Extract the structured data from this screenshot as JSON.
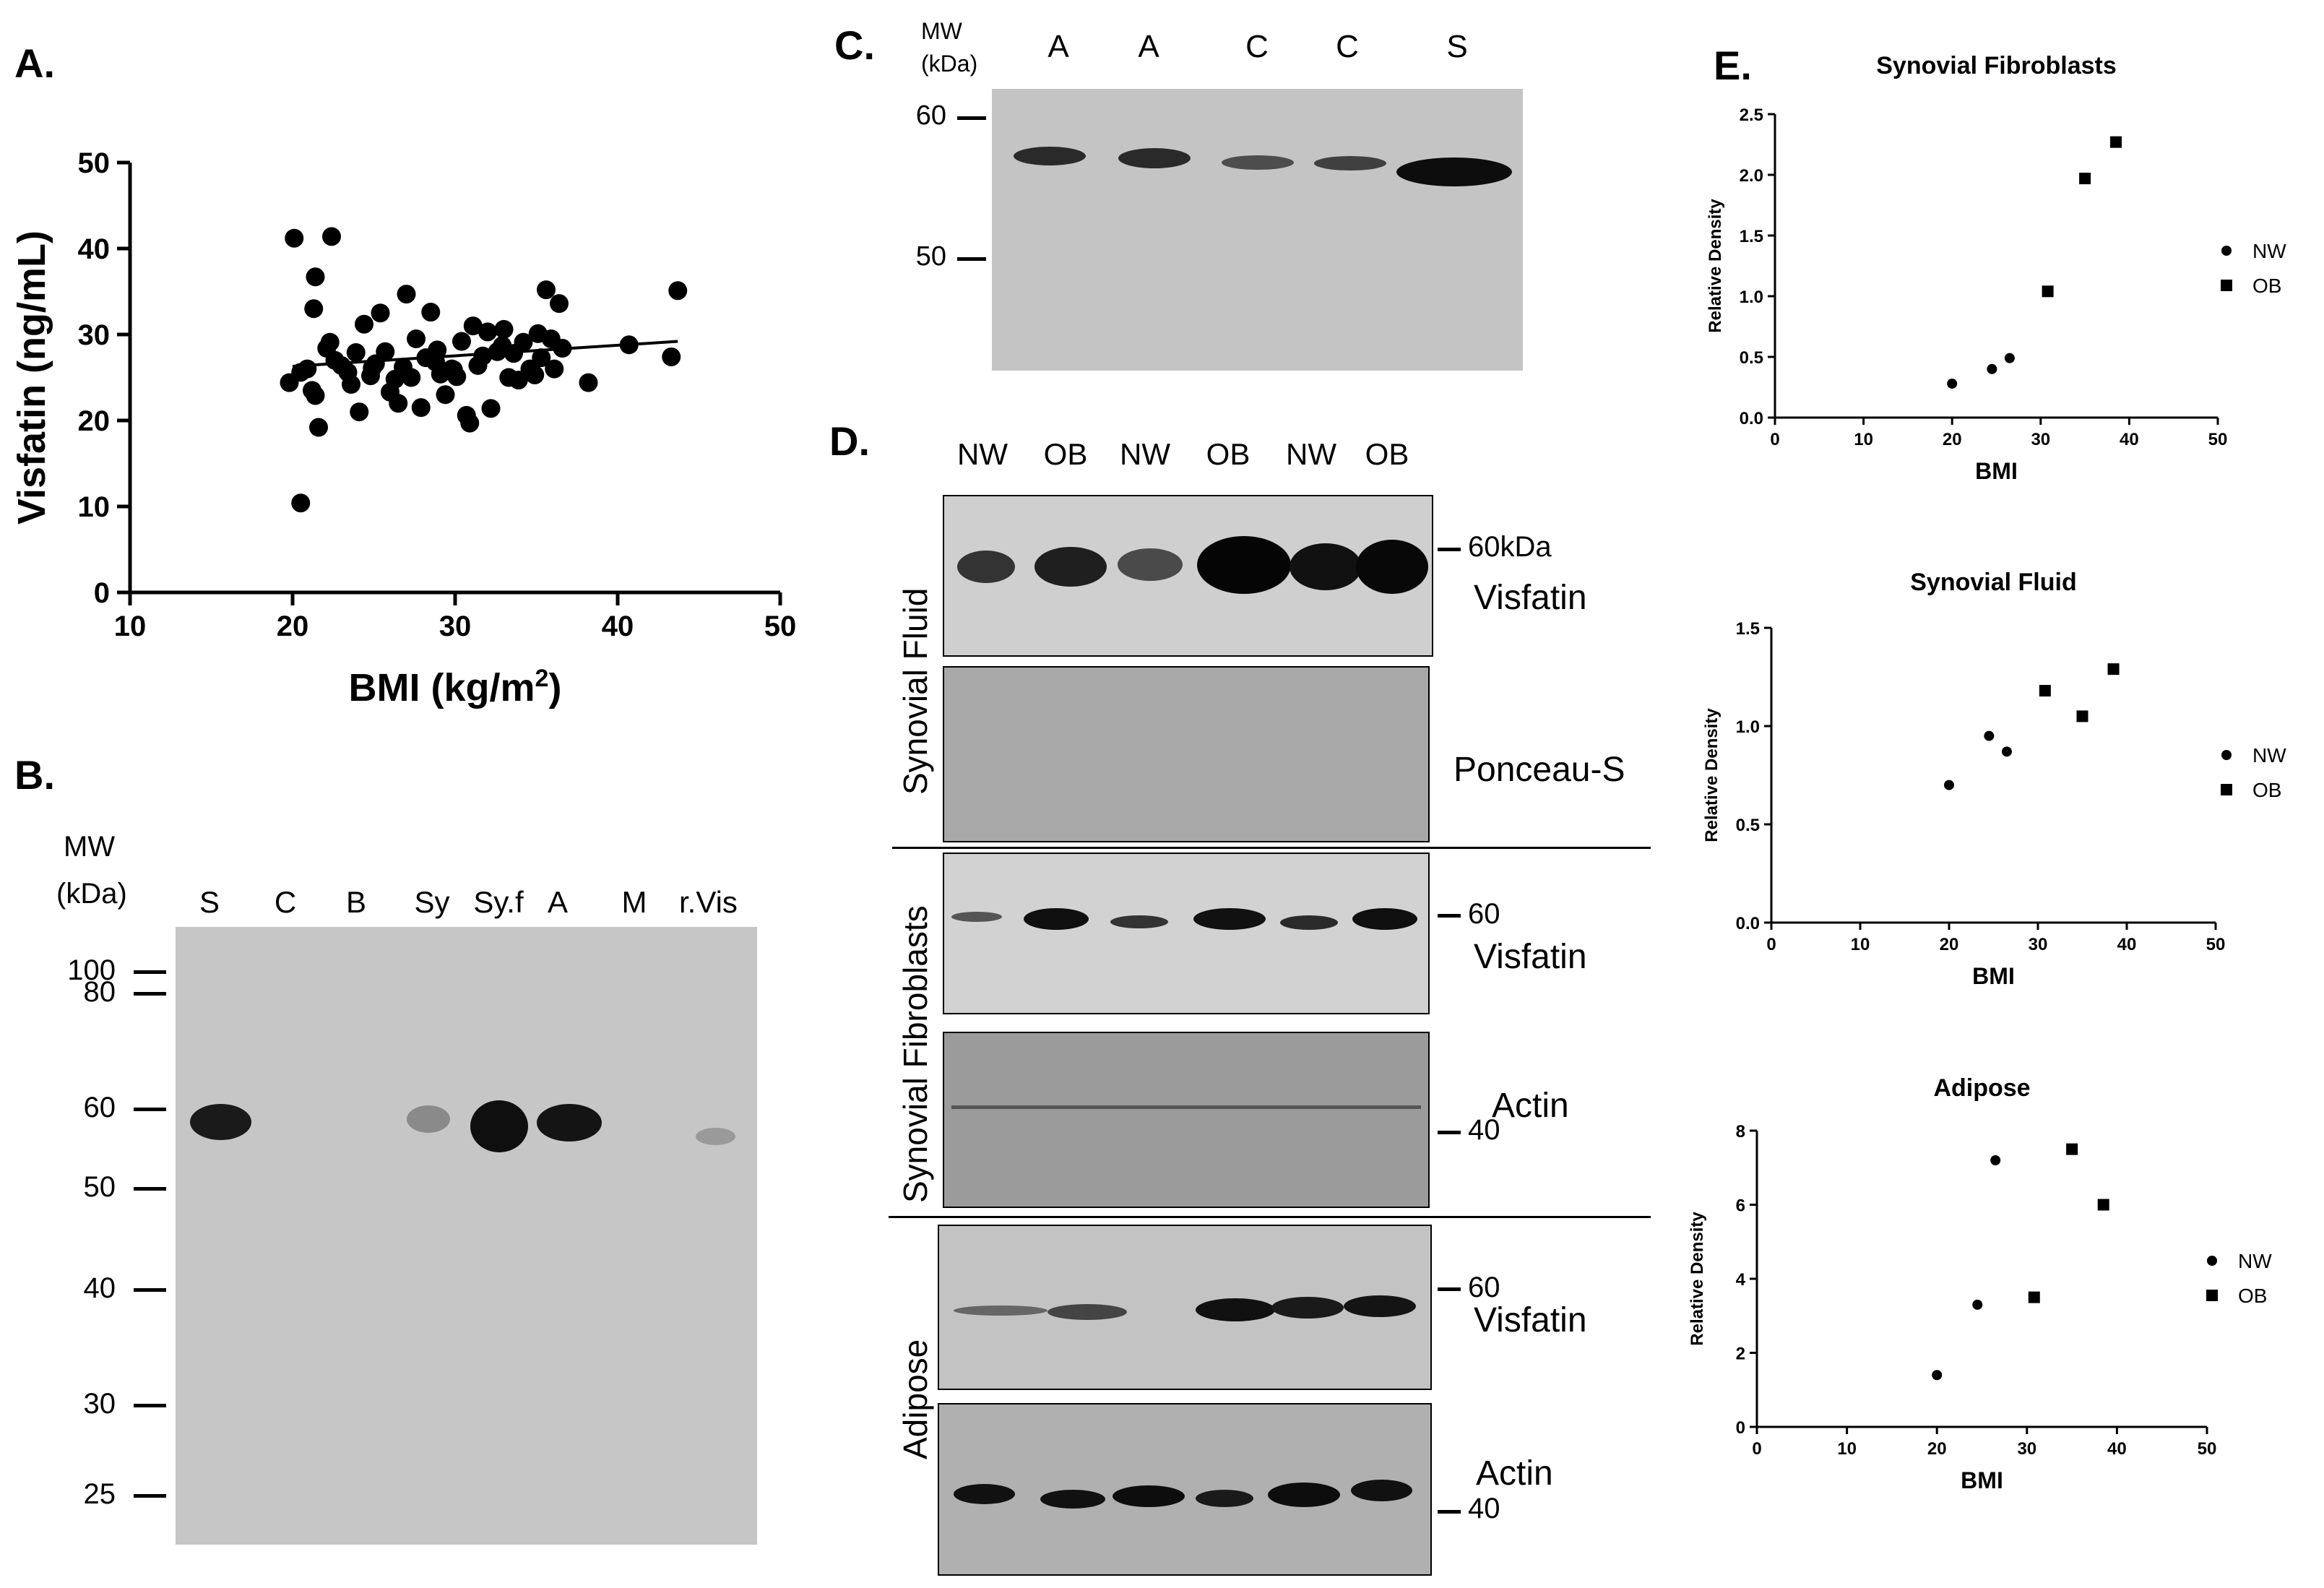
{
  "panels": {
    "A": {
      "label": "A."
    },
    "B": {
      "label": "B."
    },
    "C": {
      "label": "C."
    },
    "D": {
      "label": "D."
    },
    "E": {
      "label": "E."
    }
  },
  "chart_data": [
    {
      "id": "A",
      "type": "scatter",
      "title": "",
      "xlabel": "BMI (kg/m",
      "xlabel_sup": "2",
      "xlabel_close": ")",
      "ylabel": "Visfatin (ng/mL)",
      "xlim": [
        10,
        50
      ],
      "ylim": [
        0,
        50
      ],
      "xticks": [
        10,
        20,
        30,
        40,
        50
      ],
      "yticks": [
        0,
        10,
        20,
        30,
        40,
        50
      ],
      "points": [
        [
          20.1,
          41.2
        ],
        [
          22.4,
          41.4
        ],
        [
          21.4,
          36.7
        ],
        [
          21.3,
          33.0
        ],
        [
          19.8,
          24.4
        ],
        [
          20.5,
          25.6
        ],
        [
          20.9,
          26.0
        ],
        [
          21.2,
          23.5
        ],
        [
          21.4,
          22.9
        ],
        [
          21.6,
          19.2
        ],
        [
          22.1,
          28.4
        ],
        [
          22.3,
          29.1
        ],
        [
          22.6,
          27.0
        ],
        [
          23.0,
          26.4
        ],
        [
          23.4,
          25.6
        ],
        [
          23.6,
          24.2
        ],
        [
          23.9,
          27.9
        ],
        [
          24.1,
          21.0
        ],
        [
          24.4,
          31.2
        ],
        [
          24.8,
          25.2
        ],
        [
          25.1,
          26.6
        ],
        [
          25.4,
          32.5
        ],
        [
          25.7,
          28.0
        ],
        [
          26.0,
          23.3
        ],
        [
          26.3,
          24.8
        ],
        [
          26.5,
          22.0
        ],
        [
          26.8,
          26.2
        ],
        [
          27.0,
          34.7
        ],
        [
          27.3,
          25.0
        ],
        [
          27.6,
          29.5
        ],
        [
          27.9,
          21.5
        ],
        [
          28.2,
          27.3
        ],
        [
          28.5,
          32.6
        ],
        [
          28.8,
          26.8
        ],
        [
          29.1,
          25.4
        ],
        [
          29.4,
          23.0
        ],
        [
          29.8,
          26.0
        ],
        [
          30.1,
          25.1
        ],
        [
          30.4,
          29.2
        ],
        [
          30.7,
          20.6
        ],
        [
          30.9,
          19.7
        ],
        [
          31.1,
          31.0
        ],
        [
          31.4,
          26.4
        ],
        [
          31.7,
          27.5
        ],
        [
          32.0,
          30.3
        ],
        [
          32.2,
          21.4
        ],
        [
          32.6,
          28.0
        ],
        [
          33.0,
          30.6
        ],
        [
          33.3,
          25.0
        ],
        [
          33.6,
          27.8
        ],
        [
          33.9,
          24.7
        ],
        [
          34.2,
          29.1
        ],
        [
          34.6,
          26.0
        ],
        [
          34.9,
          25.3
        ],
        [
          35.1,
          30.1
        ],
        [
          35.3,
          27.3
        ],
        [
          35.6,
          35.2
        ],
        [
          35.9,
          29.5
        ],
        [
          36.1,
          26.0
        ],
        [
          36.4,
          33.6
        ],
        [
          36.6,
          28.4
        ],
        [
          38.2,
          24.4
        ],
        [
          40.7,
          28.8
        ],
        [
          43.3,
          27.4
        ],
        [
          43.7,
          35.1
        ],
        [
          20.5,
          10.4
        ],
        [
          24.9,
          26.1
        ],
        [
          29.9,
          25.9
        ],
        [
          32.9,
          28.7
        ],
        [
          28.9,
          28.2
        ]
      ],
      "trendline": [
        [
          20,
          26.3
        ],
        [
          43.7,
          29.2
        ]
      ]
    },
    {
      "id": "E1",
      "type": "scatter",
      "title": "Synovial  Fibroblasts",
      "xlabel": "BMI",
      "ylabel": "Relative Density",
      "xlim": [
        0,
        50
      ],
      "ylim": [
        0,
        2.5
      ],
      "xticks": [
        0,
        10,
        20,
        30,
        40,
        50
      ],
      "yticks": [
        "0.0",
        "0.5",
        "1.0",
        "1.5",
        "2.0",
        "2.5"
      ],
      "series": [
        {
          "name": "NW",
          "marker": "circle",
          "points": [
            [
              20,
              0.28
            ],
            [
              24.5,
              0.4
            ],
            [
              26.5,
              0.49
            ]
          ]
        },
        {
          "name": "OB",
          "marker": "square",
          "points": [
            [
              30.8,
              1.04
            ],
            [
              35,
              1.97
            ],
            [
              38.5,
              2.27
            ]
          ]
        }
      ]
    },
    {
      "id": "E2",
      "type": "scatter",
      "title": "Synovial Fluid",
      "xlabel": "BMI",
      "ylabel": "Relative Density",
      "xlim": [
        0,
        50
      ],
      "ylim": [
        0,
        1.5
      ],
      "xticks": [
        0,
        10,
        20,
        30,
        40,
        50
      ],
      "yticks": [
        "0.0",
        "0.5",
        "1.0",
        "1.5"
      ],
      "series": [
        {
          "name": "NW",
          "marker": "circle",
          "points": [
            [
              20,
              0.7
            ],
            [
              24.5,
              0.95
            ],
            [
              26.5,
              0.87
            ]
          ]
        },
        {
          "name": "OB",
          "marker": "square",
          "points": [
            [
              30.8,
              1.18
            ],
            [
              35,
              1.05
            ],
            [
              38.5,
              1.29
            ]
          ]
        }
      ]
    },
    {
      "id": "E3",
      "type": "scatter",
      "title": "Adipose",
      "xlabel": "BMI",
      "ylabel": "Relative Density",
      "xlim": [
        0,
        50
      ],
      "ylim": [
        0,
        8
      ],
      "xticks": [
        0,
        10,
        20,
        30,
        40,
        50
      ],
      "yticks": [
        "0",
        "2",
        "4",
        "6",
        "8"
      ],
      "series": [
        {
          "name": "NW",
          "marker": "circle",
          "points": [
            [
              20,
              1.4
            ],
            [
              24.5,
              3.3
            ],
            [
              26.5,
              7.2
            ]
          ]
        },
        {
          "name": "OB",
          "marker": "square",
          "points": [
            [
              30.8,
              3.5
            ],
            [
              35,
              7.5
            ],
            [
              38.5,
              6.0
            ]
          ]
        }
      ]
    }
  ],
  "blotB": {
    "mw_title_1": "MW",
    "mw_title_2": "(kDa)",
    "lanes": [
      "S",
      "C",
      "B",
      "Sy",
      "Sy.f",
      "A",
      "M",
      "r.Vis"
    ],
    "markers": [
      "100",
      "80",
      "60",
      "50",
      "40",
      "30",
      "25"
    ]
  },
  "blotC": {
    "mw_title_1": "MW",
    "mw_title_2": "(kDa)",
    "lanes": [
      "A",
      "A",
      "C",
      "C",
      "S"
    ],
    "markers": [
      "60",
      "50"
    ]
  },
  "blotD": {
    "lanes": [
      "NW",
      "OB",
      "NW",
      "OB",
      "NW",
      "OB"
    ],
    "sections": {
      "fluid": "Synovial Fluid",
      "fibro": "Synovial Fibroblasts",
      "adipose": "Adipose"
    },
    "labels": {
      "visfatin1": "Visfatin",
      "ponceau": "Ponceau-S",
      "visfatin2": "Visfatin",
      "actin1": "Actin",
      "visfatin3": "Visfatin",
      "actin2": "Actin"
    },
    "markers": {
      "m1": "60kDa",
      "m2": "60",
      "m3": "40",
      "m4": "60",
      "m5": "40"
    }
  }
}
